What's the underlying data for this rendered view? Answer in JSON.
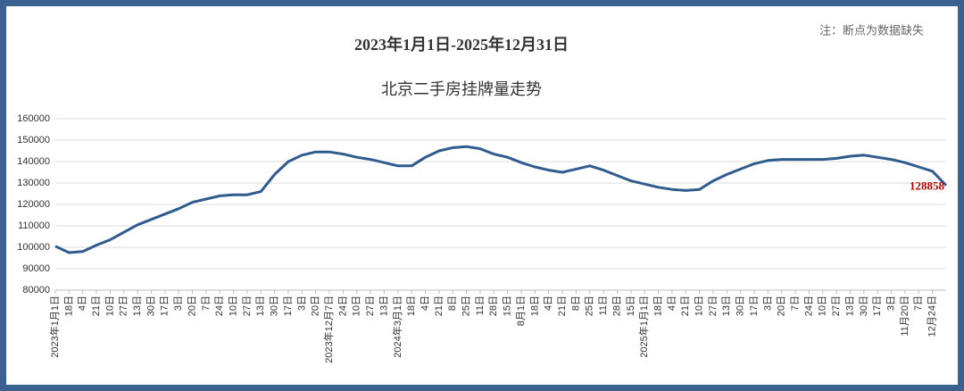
{
  "chart_data": {
    "type": "line",
    "title": "2023年1月1日-2025年12月31日",
    "subtitle": "北京二手房挂牌量走势",
    "note": "注：断点为数据缺失",
    "categories": [
      "2023年1月1日",
      "18日",
      "4日",
      "21日",
      "10日",
      "27日",
      "13日",
      "30日",
      "17日",
      "3日",
      "20日",
      "7日",
      "24日",
      "10日",
      "27日",
      "13日",
      "30日",
      "17日",
      "3日",
      "20日",
      "2023年12月7日",
      "24日",
      "10日",
      "27日",
      "13日",
      "2024年3月1日",
      "18日",
      "4日",
      "21日",
      "8日",
      "25日",
      "11日",
      "28日",
      "15日",
      "8月1日",
      "18日",
      "4日",
      "21日",
      "8日",
      "25日",
      "11日",
      "28日",
      "15日",
      "2025年1月1日",
      "18日",
      "4日",
      "21日",
      "10日",
      "27日",
      "13日",
      "30日",
      "17日",
      "3日",
      "20日",
      "7日",
      "24日",
      "10日",
      "27日",
      "13日",
      "30日",
      "17日",
      "3日",
      "11月20日",
      "7日",
      "12月24日",
      null
    ],
    "series": [
      {
        "name": null,
        "color": "#2f5b8d",
        "values": [
          100500,
          97500,
          98000,
          101000,
          103500,
          107000,
          110500,
          113000,
          115500,
          118000,
          121000,
          122500,
          124000,
          124500,
          124500,
          126000,
          134000,
          140000,
          143000,
          144500,
          144500,
          143500,
          142000,
          141000,
          139500,
          138000,
          138000,
          142000,
          145000,
          146500,
          147000,
          146000,
          143500,
          142000,
          139500,
          137500,
          136000,
          135000,
          136500,
          138000,
          136000,
          133500,
          131000,
          129500,
          128000,
          127000,
          126500,
          127000,
          131000,
          134000,
          136500,
          139000,
          140500,
          141000,
          141000,
          141000,
          141000,
          141500,
          142500,
          143000,
          142000,
          141000,
          139500,
          137500,
          135500,
          128858
        ],
        "label_last": true
      }
    ],
    "ylim": [
      80000,
      160000
    ],
    "yticks": [
      80000,
      90000,
      100000,
      110000,
      120000,
      130000,
      140000,
      150000,
      160000
    ],
    "grid": true
  }
}
